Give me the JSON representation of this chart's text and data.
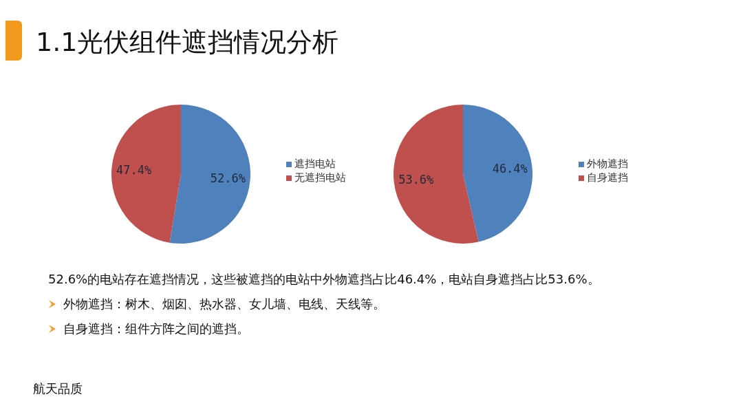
{
  "chart_data": [
    {
      "type": "pie",
      "title": "1.1光伏组件遮挡情况分析",
      "categories": [
        "遮挡电站",
        "无遮挡电站"
      ],
      "values": [
        52.6,
        47.4
      ],
      "colors": [
        "#4f81bd",
        "#c0504d"
      ],
      "value_labels": [
        "52.6%",
        "47.4%"
      ],
      "legend": "right"
    },
    {
      "type": "pie",
      "categories": [
        "外物遮挡",
        "自身遮挡"
      ],
      "values": [
        46.4,
        53.6
      ],
      "colors": [
        "#4f81bd",
        "#c0504d"
      ],
      "value_labels": [
        "46.4%",
        "53.6%"
      ],
      "legend": "right",
      "annotations": [
        "52.6%的电站存在遮挡情况，这些被遮挡的电站中外物遮挡占比46.4%，电站自身遮挡占比53.6%。",
        "外物遮挡：树木、烟囱、热水器、女儿墙、电线、天线等。",
        "自身遮挡：组件方阵之间的遮挡。",
        "航天品质"
      ]
    }
  ]
}
